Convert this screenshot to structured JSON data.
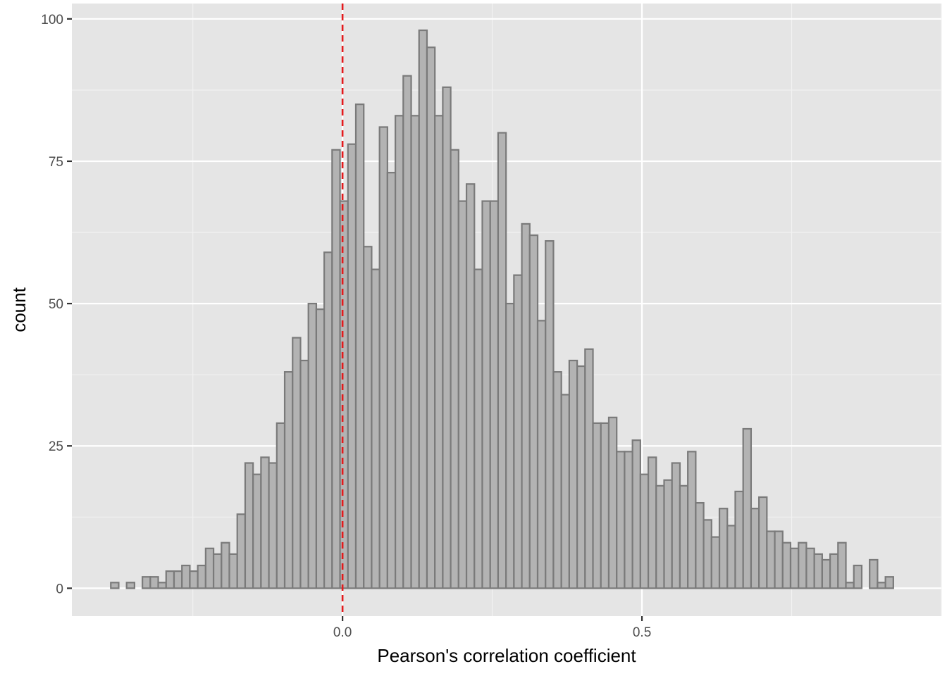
{
  "chart_data": {
    "type": "bar",
    "subtype": "histogram",
    "title": "",
    "xlabel": "Pearson's correlation coefficient",
    "ylabel": "count",
    "x_ticks": [
      0.0,
      0.5
    ],
    "x_tick_labels": [
      "0.0",
      "0.5"
    ],
    "y_ticks": [
      0,
      25,
      50,
      75,
      100
    ],
    "y_tick_labels": [
      "0",
      "25",
      "50",
      "75",
      "100"
    ],
    "xlim": [
      -0.452,
      1.0
    ],
    "ylim": [
      -4.9,
      102.7
    ],
    "bin_start": -0.387,
    "bin_width": 0.0132,
    "values": [
      1,
      0,
      1,
      0,
      2,
      2,
      1,
      3,
      3,
      4,
      3,
      4,
      7,
      6,
      8,
      6,
      13,
      22,
      20,
      23,
      22,
      29,
      38,
      44,
      40,
      50,
      49,
      59,
      77,
      68,
      78,
      85,
      60,
      56,
      81,
      73,
      83,
      90,
      83,
      98,
      95,
      83,
      88,
      77,
      68,
      71,
      56,
      68,
      68,
      80,
      50,
      55,
      64,
      62,
      47,
      61,
      38,
      34,
      40,
      39,
      42,
      29,
      29,
      30,
      24,
      24,
      26,
      20,
      23,
      18,
      19,
      22,
      18,
      24,
      15,
      12,
      9,
      14,
      11,
      17,
      28,
      14,
      16,
      10,
      10,
      8,
      7,
      8,
      7,
      6,
      5,
      6,
      8,
      1,
      4,
      0,
      5,
      1,
      2
    ],
    "reference_line": {
      "x": 0.0,
      "style": "dashed",
      "color": "#e41a1c"
    },
    "grid": true,
    "legend": "none",
    "colors": {
      "panel_background": "#e5e5e5",
      "grid_major": "#ffffff",
      "grid_minor": "#f2f2f2",
      "bar_fill": "#b3b3b3",
      "bar_outline": "#7a7a7a",
      "reference_line": "#e41a1c",
      "tick_label": "#4d4d4d",
      "axis_title": "#000000"
    }
  }
}
